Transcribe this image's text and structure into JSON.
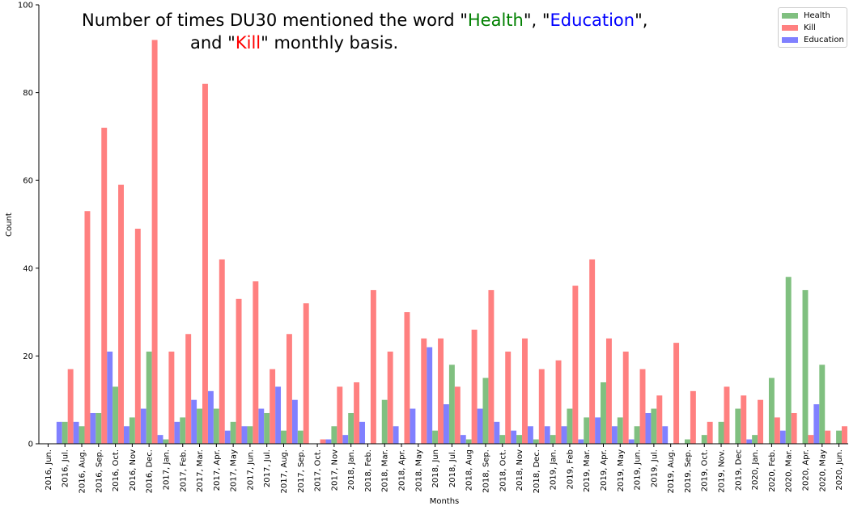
{
  "title": {
    "line1": [
      {
        "text": "Number of times DU30 mentioned the word \"",
        "color": "#000000"
      },
      {
        "text": "Health",
        "color": "#008000"
      },
      {
        "text": "\", \"",
        "color": "#000000"
      },
      {
        "text": "Education",
        "color": "#0000ff"
      },
      {
        "text": "\",",
        "color": "#000000"
      }
    ],
    "line2": [
      {
        "text": "and \"",
        "color": "#000000"
      },
      {
        "text": "Kill",
        "color": "#ff0000"
      },
      {
        "text": "\" monthly basis.",
        "color": "#000000"
      }
    ]
  },
  "chart_data": {
    "type": "bar",
    "title": "Number of times DU30 mentioned the word \"Health\", \"Education\", and \"Kill\" monthly basis.",
    "xlabel": "Months",
    "ylabel": "Count",
    "ylim": [
      0,
      100
    ],
    "yticks": [
      0,
      20,
      40,
      60,
      80,
      100
    ],
    "legend_position": "top-right",
    "grid": false,
    "categories": [
      "2016, Jun.",
      "2016, Jul.",
      "2016, Aug.",
      "2016, Sep.",
      "2016, Oct.",
      "2016, Nov",
      "2016, Dec.",
      "2017, Jan.",
      "2017, Feb.",
      "2017, Mar.",
      "2017, Apr.",
      "2017, May",
      "2017, Jun.",
      "2017, Jul.",
      "2017, Aug.",
      "2017, Sep.",
      "2017, Oct.",
      "2017, Nov",
      "2018, Jan.",
      "2018, Feb.",
      "2018, Mar.",
      "2018, Apr.",
      "2018, May",
      "2018, Jun",
      "2018, Jul.",
      "2018, Aug",
      "2018, Sep.",
      "2018, Oct.",
      "2018, Nov",
      "2018, Dec.",
      "2019, Jan.",
      "2019, Feb",
      "2019, Mar.",
      "2019, Apr.",
      "2019, May",
      "2019, Jun.",
      "2019, Jul.",
      "2019, Aug.",
      "2019, Sep.",
      "2019, Oct.",
      "2019, Nov.",
      "2019, Dec",
      "2020, Jan.",
      "2020, Feb.",
      "2020, Mar.",
      "2020, Apr.",
      "2020, May",
      "2020, Jun."
    ],
    "series": [
      {
        "name": "Education",
        "color": "#8080ff",
        "values": [
          0,
          5,
          5,
          7,
          21,
          4,
          8,
          2,
          5,
          10,
          12,
          3,
          4,
          8,
          13,
          10,
          0,
          1,
          2,
          5,
          0,
          4,
          8,
          22,
          9,
          2,
          8,
          5,
          3,
          4,
          4,
          4,
          1,
          6,
          4,
          1,
          7,
          4,
          0,
          0,
          0,
          0,
          1,
          0,
          3,
          0,
          9,
          0
        ]
      },
      {
        "name": "Health",
        "color": "#80c080",
        "values": [
          0,
          5,
          4,
          7,
          13,
          6,
          21,
          1,
          6,
          8,
          8,
          5,
          4,
          7,
          3,
          3,
          0,
          4,
          7,
          0,
          10,
          0,
          0,
          3,
          18,
          1,
          15,
          2,
          2,
          1,
          2,
          8,
          6,
          14,
          6,
          4,
          8,
          0,
          1,
          2,
          5,
          8,
          2,
          15,
          38,
          35,
          18,
          3
        ]
      },
      {
        "name": "Kill",
        "color": "#ff8080",
        "values": [
          0,
          17,
          53,
          72,
          59,
          49,
          92,
          21,
          25,
          82,
          42,
          33,
          37,
          17,
          25,
          32,
          1,
          13,
          14,
          35,
          21,
          30,
          24,
          24,
          13,
          26,
          35,
          21,
          24,
          17,
          19,
          36,
          42,
          24,
          21,
          17,
          11,
          23,
          12,
          5,
          13,
          11,
          10,
          6,
          7,
          2,
          3,
          4
        ]
      }
    ],
    "legend_order": [
      "Health",
      "Kill",
      "Education"
    ]
  }
}
